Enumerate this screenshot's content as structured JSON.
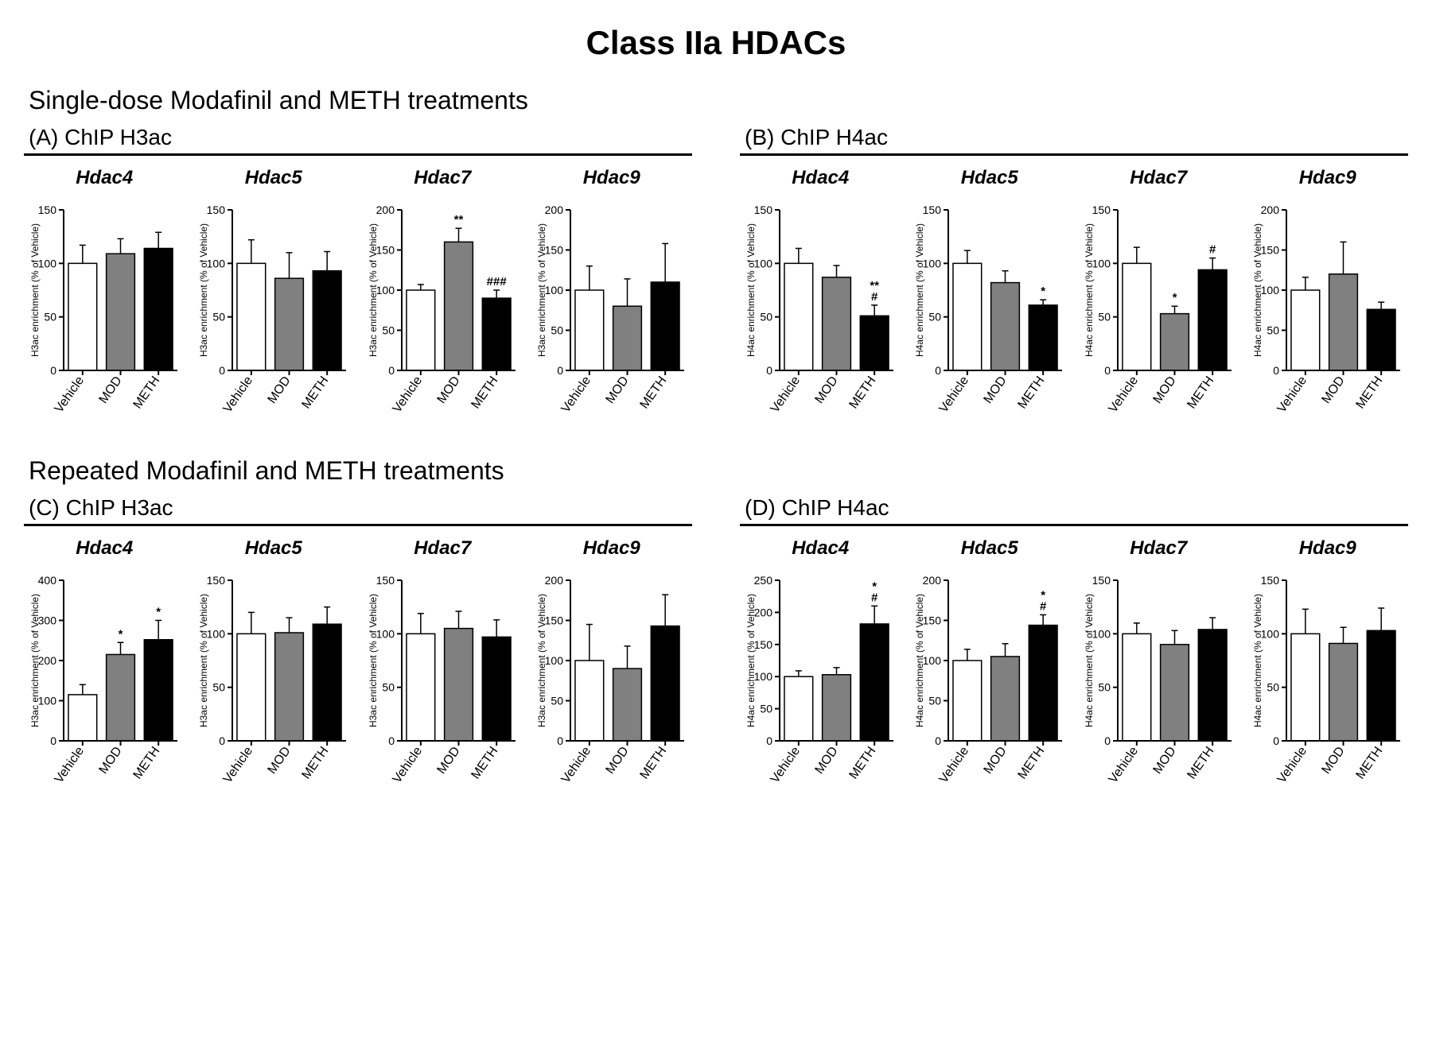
{
  "title": "Class IIa HDACs",
  "section1": "Single-dose Modafinil and METH treatments",
  "section2": "Repeated Modafinil and METH treatments",
  "categories": [
    "Vehicle",
    "MOD",
    "METH"
  ],
  "bar_colors": [
    "#ffffff",
    "#808080",
    "#000000"
  ],
  "bar_stroke": "#000000",
  "axis_color": "#000000",
  "axis_width": 2,
  "error_cap_width": 8,
  "bar_width": 0.75,
  "title_fontsize": 24,
  "label_fontsize": 12,
  "tick_fontsize": 14,
  "sig_fontsize": 15,
  "panels": {
    "A": {
      "label": "(A) ChIP H3ac",
      "ylabel": "H3ac enrichment (% of Vehicle)",
      "charts": [
        {
          "name": "Hdac4",
          "ymax": 150,
          "ystep": 50,
          "bars": [
            {
              "v": 100,
              "err": 17,
              "sig": ""
            },
            {
              "v": 109,
              "err": 14,
              "sig": ""
            },
            {
              "v": 114,
              "err": 15,
              "sig": ""
            }
          ]
        },
        {
          "name": "Hdac5",
          "ymax": 150,
          "ystep": 50,
          "bars": [
            {
              "v": 100,
              "err": 22,
              "sig": ""
            },
            {
              "v": 86,
              "err": 24,
              "sig": ""
            },
            {
              "v": 93,
              "err": 18,
              "sig": ""
            }
          ]
        },
        {
          "name": "Hdac7",
          "ymax": 200,
          "ystep": 50,
          "bars": [
            {
              "v": 100,
              "err": 7,
              "sig": ""
            },
            {
              "v": 160,
              "err": 17,
              "sig": "**"
            },
            {
              "v": 90,
              "err": 10,
              "sig": "###"
            }
          ]
        },
        {
          "name": "Hdac9",
          "ymax": 200,
          "ystep": 50,
          "bars": [
            {
              "v": 100,
              "err": 30,
              "sig": ""
            },
            {
              "v": 80,
              "err": 34,
              "sig": ""
            },
            {
              "v": 110,
              "err": 48,
              "sig": ""
            }
          ]
        }
      ]
    },
    "B": {
      "label": "(B) ChIP H4ac",
      "ylabel": "H4ac enrichment (% of Vehicle)",
      "charts": [
        {
          "name": "Hdac4",
          "ymax": 150,
          "ystep": 50,
          "bars": [
            {
              "v": 100,
              "err": 14,
              "sig": ""
            },
            {
              "v": 87,
              "err": 11,
              "sig": ""
            },
            {
              "v": 51,
              "err": 10,
              "sig": "**\n#"
            }
          ]
        },
        {
          "name": "Hdac5",
          "ymax": 150,
          "ystep": 50,
          "bars": [
            {
              "v": 100,
              "err": 12,
              "sig": ""
            },
            {
              "v": 82,
              "err": 11,
              "sig": ""
            },
            {
              "v": 61,
              "err": 5,
              "sig": "*"
            }
          ]
        },
        {
          "name": "Hdac7",
          "ymax": 150,
          "ystep": 50,
          "bars": [
            {
              "v": 100,
              "err": 15,
              "sig": ""
            },
            {
              "v": 53,
              "err": 7,
              "sig": "*"
            },
            {
              "v": 94,
              "err": 11,
              "sig": "#"
            }
          ]
        },
        {
          "name": "Hdac9",
          "ymax": 200,
          "ystep": 50,
          "bars": [
            {
              "v": 100,
              "err": 16,
              "sig": ""
            },
            {
              "v": 120,
              "err": 40,
              "sig": ""
            },
            {
              "v": 76,
              "err": 9,
              "sig": ""
            }
          ]
        }
      ]
    },
    "C": {
      "label": "(C) ChIP H3ac",
      "ylabel": "H3ac enrichment (% of Vehicle)",
      "charts": [
        {
          "name": "Hdac4",
          "ymax": 400,
          "ystep": 100,
          "bars": [
            {
              "v": 115,
              "err": 25,
              "sig": ""
            },
            {
              "v": 215,
              "err": 30,
              "sig": "*"
            },
            {
              "v": 252,
              "err": 48,
              "sig": "*"
            }
          ]
        },
        {
          "name": "Hdac5",
          "ymax": 150,
          "ystep": 50,
          "bars": [
            {
              "v": 100,
              "err": 20,
              "sig": ""
            },
            {
              "v": 101,
              "err": 14,
              "sig": ""
            },
            {
              "v": 109,
              "err": 16,
              "sig": ""
            }
          ]
        },
        {
          "name": "Hdac7",
          "ymax": 150,
          "ystep": 50,
          "bars": [
            {
              "v": 100,
              "err": 19,
              "sig": ""
            },
            {
              "v": 105,
              "err": 16,
              "sig": ""
            },
            {
              "v": 97,
              "err": 16,
              "sig": ""
            }
          ]
        },
        {
          "name": "Hdac9",
          "ymax": 200,
          "ystep": 50,
          "bars": [
            {
              "v": 100,
              "err": 45,
              "sig": ""
            },
            {
              "v": 90,
              "err": 28,
              "sig": ""
            },
            {
              "v": 143,
              "err": 39,
              "sig": ""
            }
          ]
        }
      ]
    },
    "D": {
      "label": "(D) ChIP H4ac",
      "ylabel": "H4ac enrichment (% of Vehicle)",
      "charts": [
        {
          "name": "Hdac4",
          "ymax": 250,
          "ystep": 50,
          "bars": [
            {
              "v": 100,
              "err": 9,
              "sig": ""
            },
            {
              "v": 103,
              "err": 11,
              "sig": ""
            },
            {
              "v": 182,
              "err": 28,
              "sig": "*\n#"
            }
          ]
        },
        {
          "name": "Hdac5",
          "ymax": 200,
          "ystep": 50,
          "bars": [
            {
              "v": 100,
              "err": 14,
              "sig": ""
            },
            {
              "v": 105,
              "err": 16,
              "sig": ""
            },
            {
              "v": 144,
              "err": 13,
              "sig": "*\n#"
            }
          ]
        },
        {
          "name": "Hdac7",
          "ymax": 150,
          "ystep": 50,
          "bars": [
            {
              "v": 100,
              "err": 10,
              "sig": ""
            },
            {
              "v": 90,
              "err": 13,
              "sig": ""
            },
            {
              "v": 104,
              "err": 11,
              "sig": ""
            }
          ]
        },
        {
          "name": "Hdac9",
          "ymax": 150,
          "ystep": 50,
          "bars": [
            {
              "v": 100,
              "err": 23,
              "sig": ""
            },
            {
              "v": 91,
              "err": 15,
              "sig": ""
            },
            {
              "v": 103,
              "err": 21,
              "sig": ""
            }
          ]
        }
      ]
    }
  }
}
